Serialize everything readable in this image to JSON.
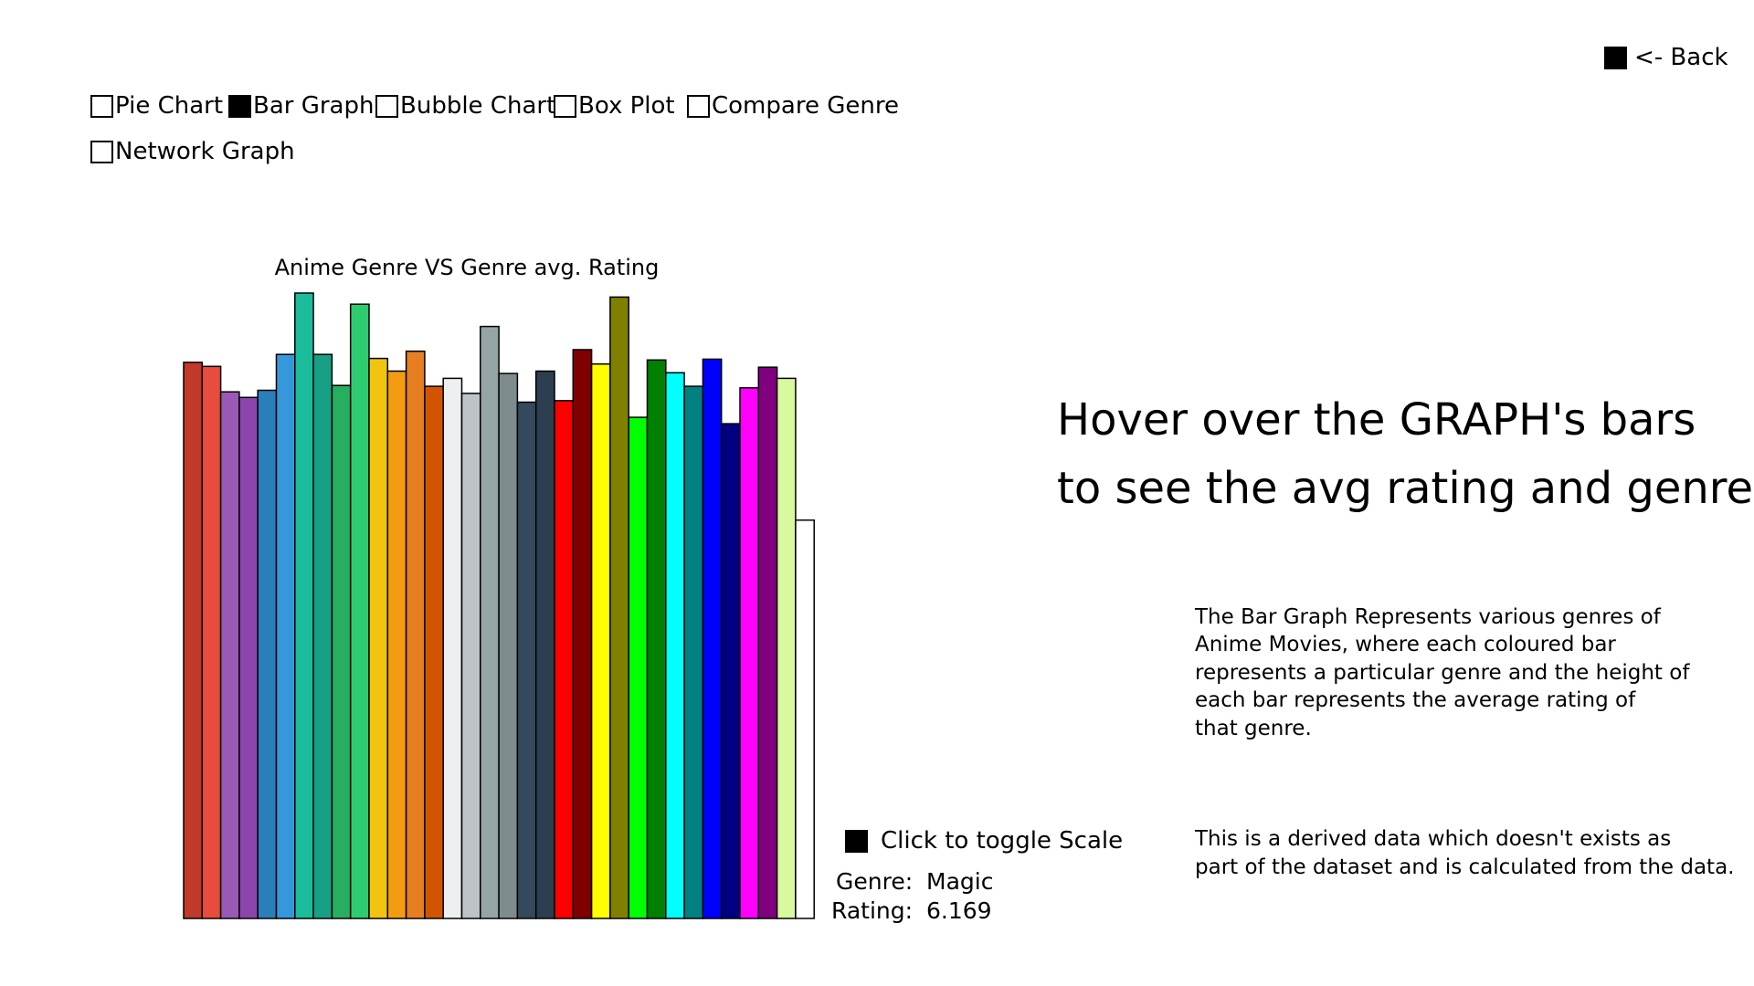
{
  "nav": {
    "back_label": "<- Back",
    "back_checked": true,
    "options": [
      {
        "label": "Pie Chart",
        "checked": false
      },
      {
        "label": "Bar Graph",
        "checked": true
      },
      {
        "label": "Bubble Chart",
        "checked": false
      },
      {
        "label": "Box Plot",
        "checked": false
      },
      {
        "label": "Compare Genre",
        "checked": false
      },
      {
        "label": "Network Graph",
        "checked": false
      }
    ]
  },
  "hint": {
    "line1": "Hover over the GRAPH's bars",
    "line2": "to see the avg rating and genre"
  },
  "description": {
    "para1": "The Bar Graph Represents various genres of\nAnime Movies, where each coloured bar\nrepresents a particular genre and the height of\neach bar represents the average rating of\nthat genre.",
    "para2": "This is a derived data which doesn't exists as\npart of the dataset and is calculated from the data."
  },
  "scale_toggle": {
    "label": "Click to toggle Scale",
    "checked": true
  },
  "selection": {
    "genre_label": "Genre:",
    "genre_value": "Magic",
    "rating_label": "Rating:",
    "rating_value": "6.169"
  },
  "chart_data": {
    "type": "bar",
    "title": "Anime Genre VS Genre avg. Rating",
    "xlabel": "",
    "ylabel": "",
    "axes_visible": false,
    "grid": false,
    "bars": [
      {
        "value": 6.98,
        "color": "#c0392b"
      },
      {
        "value": 6.93,
        "color": "#e74c3c"
      },
      {
        "value": 6.61,
        "color": "#9b59b6"
      },
      {
        "value": 6.54,
        "color": "#8e44ad"
      },
      {
        "value": 6.63,
        "color": "#2980b9"
      },
      {
        "value": 7.08,
        "color": "#3498db"
      },
      {
        "value": 7.85,
        "color": "#1abc9c"
      },
      {
        "value": 7.08,
        "color": "#16a085"
      },
      {
        "value": 6.69,
        "color": "#27ae60"
      },
      {
        "value": 7.71,
        "color": "#2ecc71"
      },
      {
        "value": 7.03,
        "color": "#f1c40f"
      },
      {
        "value": 6.87,
        "color": "#f39c12"
      },
      {
        "value": 7.12,
        "color": "#e67e22"
      },
      {
        "value": 6.68,
        "color": "#d35400"
      },
      {
        "value": 6.78,
        "color": "#ecf0f1"
      },
      {
        "value": 6.59,
        "color": "#bdc3c7"
      },
      {
        "value": 7.43,
        "color": "#95a5a6"
      },
      {
        "value": 6.84,
        "color": "#7f8c8d"
      },
      {
        "value": 6.48,
        "color": "#34495e"
      },
      {
        "value": 6.87,
        "color": "#2c3e50"
      },
      {
        "value": 6.5,
        "color": "#ff0000"
      },
      {
        "value": 7.14,
        "color": "#800000"
      },
      {
        "value": 6.96,
        "color": "#ffff00"
      },
      {
        "value": 7.8,
        "color": "#808000"
      },
      {
        "value": 6.29,
        "color": "#00ff00"
      },
      {
        "value": 7.01,
        "color": "#008000"
      },
      {
        "value": 6.85,
        "color": "#00ffff"
      },
      {
        "value": 6.68,
        "color": "#008080"
      },
      {
        "value": 7.02,
        "color": "#0000ff"
      },
      {
        "value": 6.21,
        "color": "#000080"
      },
      {
        "value": 6.66,
        "color": "#ff00ff"
      },
      {
        "value": 6.92,
        "color": "#800080"
      },
      {
        "value": 6.78,
        "color": "#d9f99d"
      },
      {
        "value": 5.0,
        "color": "#ffffff"
      }
    ],
    "ylim": [
      0,
      7.85
    ]
  }
}
